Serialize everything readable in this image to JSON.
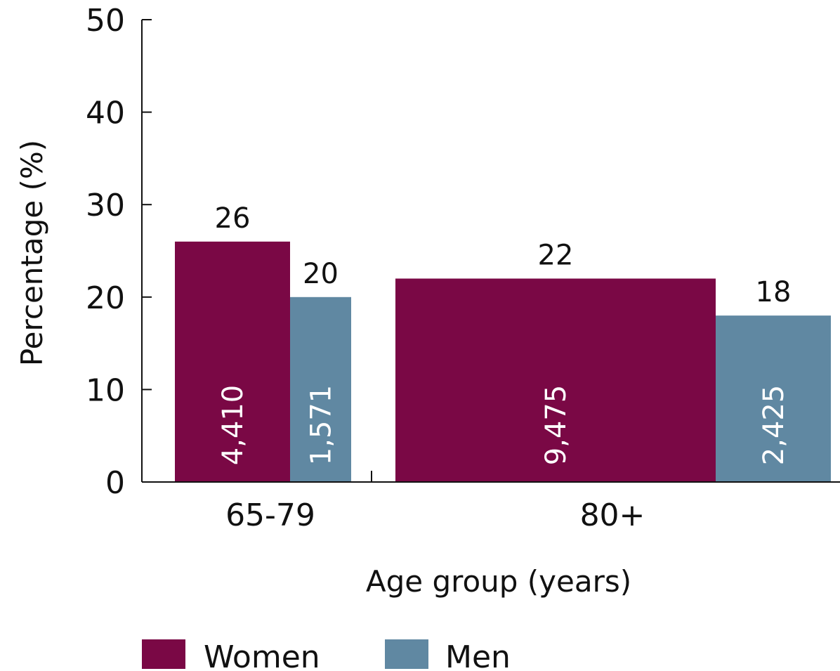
{
  "chart_data": {
    "type": "bar",
    "categories": [
      "65-79",
      "80+"
    ],
    "series": [
      {
        "name": "Women",
        "values": [
          26,
          22
        ],
        "counts": [
          "4,410",
          "9,475"
        ],
        "color": "#7a0845"
      },
      {
        "name": "Men",
        "values": [
          20,
          18
        ],
        "counts": [
          "1,571",
          "2,425"
        ],
        "color": "#6088a2"
      }
    ],
    "value_labels": [
      [
        "26",
        "22"
      ],
      [
        "20",
        "18"
      ]
    ],
    "xlabel": "Age group (years)",
    "ylabel": "Percentage (%)",
    "ylim": [
      0,
      50
    ],
    "yticks": [
      "0",
      "10",
      "20",
      "30",
      "40",
      "50"
    ],
    "grid": false,
    "legend_position": "bottom"
  }
}
